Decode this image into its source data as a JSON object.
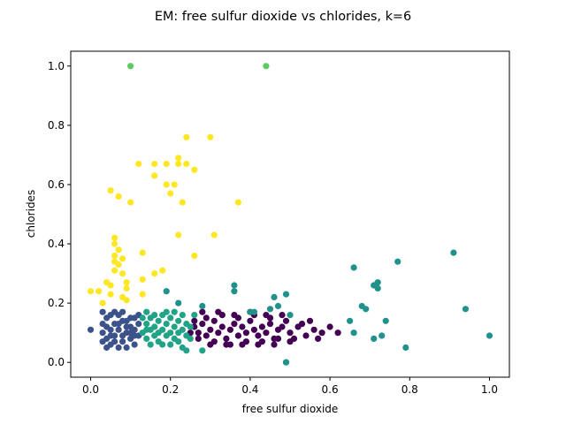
{
  "chart_data": {
    "type": "scatter",
    "title": "EM: free sulfur dioxide vs chlorides, k=6",
    "xlabel": "free sulfur dioxide",
    "ylabel": "chlorides",
    "xlim": [
      -0.05,
      1.05
    ],
    "ylim": [
      -0.05,
      1.05
    ],
    "xticks": [
      "0.0",
      "0.2",
      "0.4",
      "0.6",
      "0.8",
      "1.0"
    ],
    "yticks": [
      "0.0",
      "0.2",
      "0.4",
      "0.6",
      "0.8",
      "1.0"
    ],
    "grid": false,
    "legend": "none",
    "series": [
      {
        "color": "#440154",
        "points": [
          [
            0.26,
            0.12
          ],
          [
            0.27,
            0.1
          ],
          [
            0.28,
            0.13
          ],
          [
            0.29,
            0.09
          ],
          [
            0.3,
            0.11
          ],
          [
            0.31,
            0.14
          ],
          [
            0.32,
            0.1
          ],
          [
            0.33,
            0.12
          ],
          [
            0.34,
            0.08
          ],
          [
            0.35,
            0.11
          ],
          [
            0.36,
            0.13
          ],
          [
            0.37,
            0.09
          ],
          [
            0.38,
            0.12
          ],
          [
            0.39,
            0.1
          ],
          [
            0.4,
            0.14
          ],
          [
            0.41,
            0.11
          ],
          [
            0.42,
            0.09
          ],
          [
            0.43,
            0.12
          ],
          [
            0.44,
            0.1
          ],
          [
            0.45,
            0.13
          ],
          [
            0.46,
            0.08
          ],
          [
            0.47,
            0.11
          ],
          [
            0.48,
            0.12
          ],
          [
            0.5,
            0.1
          ],
          [
            0.52,
            0.12
          ],
          [
            0.54,
            0.09
          ],
          [
            0.56,
            0.11
          ],
          [
            0.58,
            0.1
          ],
          [
            0.6,
            0.12
          ],
          [
            0.27,
            0.08
          ],
          [
            0.29,
            0.15
          ],
          [
            0.31,
            0.07
          ],
          [
            0.33,
            0.16
          ],
          [
            0.35,
            0.06
          ],
          [
            0.37,
            0.15
          ],
          [
            0.39,
            0.07
          ],
          [
            0.41,
            0.16
          ],
          [
            0.43,
            0.07
          ],
          [
            0.45,
            0.15
          ],
          [
            0.47,
            0.08
          ],
          [
            0.49,
            0.14
          ],
          [
            0.51,
            0.08
          ],
          [
            0.53,
            0.13
          ],
          [
            0.55,
            0.14
          ],
          [
            0.57,
            0.08
          ],
          [
            0.28,
            0.17
          ],
          [
            0.32,
            0.17
          ],
          [
            0.36,
            0.16
          ],
          [
            0.4,
            0.17
          ],
          [
            0.44,
            0.16
          ],
          [
            0.48,
            0.16
          ],
          [
            0.3,
            0.06
          ],
          [
            0.34,
            0.06
          ],
          [
            0.38,
            0.06
          ],
          [
            0.42,
            0.06
          ],
          [
            0.46,
            0.06
          ],
          [
            0.5,
            0.07
          ],
          [
            0.25,
            0.1
          ],
          [
            0.26,
            0.14
          ],
          [
            0.62,
            0.1
          ]
        ]
      },
      {
        "color": "#3b528b",
        "points": [
          [
            0.0,
            0.11
          ],
          [
            0.03,
            0.1
          ],
          [
            0.03,
            0.13
          ],
          [
            0.04,
            0.08
          ],
          [
            0.04,
            0.15
          ],
          [
            0.05,
            0.11
          ],
          [
            0.05,
            0.06
          ],
          [
            0.06,
            0.13
          ],
          [
            0.06,
            0.09
          ],
          [
            0.07,
            0.16
          ],
          [
            0.07,
            0.11
          ],
          [
            0.08,
            0.07
          ],
          [
            0.08,
            0.14
          ],
          [
            0.09,
            0.1
          ],
          [
            0.09,
            0.12
          ],
          [
            0.1,
            0.08
          ],
          [
            0.1,
            0.15
          ],
          [
            0.11,
            0.11
          ],
          [
            0.11,
            0.06
          ],
          [
            0.12,
            0.13
          ],
          [
            0.03,
            0.07
          ],
          [
            0.04,
            0.12
          ],
          [
            0.05,
            0.16
          ],
          [
            0.06,
            0.07
          ],
          [
            0.07,
            0.05
          ],
          [
            0.08,
            0.17
          ],
          [
            0.09,
            0.05
          ],
          [
            0.1,
            0.12
          ],
          [
            0.11,
            0.15
          ],
          [
            0.12,
            0.09
          ],
          [
            0.03,
            0.17
          ],
          [
            0.04,
            0.05
          ],
          [
            0.06,
            0.17
          ],
          [
            0.08,
            0.09
          ],
          [
            0.1,
            0.1
          ],
          [
            0.12,
            0.16
          ],
          [
            0.05,
            0.09
          ],
          [
            0.07,
            0.13
          ],
          [
            0.09,
            0.14
          ],
          [
            0.11,
            0.09
          ]
        ]
      },
      {
        "color": "#21918c",
        "points": [
          [
            0.49,
            0.0
          ],
          [
            0.49,
            0.0
          ],
          [
            0.66,
            0.32
          ],
          [
            0.77,
            0.34
          ],
          [
            0.91,
            0.37
          ],
          [
            0.94,
            0.18
          ],
          [
            1.0,
            0.09
          ],
          [
            0.71,
            0.26
          ],
          [
            0.72,
            0.27
          ],
          [
            0.72,
            0.25
          ],
          [
            0.68,
            0.19
          ],
          [
            0.69,
            0.18
          ],
          [
            0.74,
            0.14
          ],
          [
            0.65,
            0.14
          ],
          [
            0.66,
            0.1
          ],
          [
            0.71,
            0.08
          ],
          [
            0.73,
            0.09
          ],
          [
            0.79,
            0.05
          ],
          [
            0.36,
            0.26
          ],
          [
            0.36,
            0.24
          ],
          [
            0.46,
            0.22
          ],
          [
            0.49,
            0.23
          ],
          [
            0.4,
            0.17
          ],
          [
            0.45,
            0.18
          ],
          [
            0.22,
            0.2
          ],
          [
            0.28,
            0.19
          ],
          [
            0.41,
            0.17
          ],
          [
            0.47,
            0.19
          ],
          [
            0.19,
            0.24
          ],
          [
            0.5,
            0.16
          ]
        ]
      },
      {
        "color": "#5ec962",
        "points": [
          [
            0.1,
            1.0
          ],
          [
            0.44,
            1.0
          ]
        ]
      },
      {
        "color": "#fde725",
        "points": [
          [
            0.0,
            0.24
          ],
          [
            0.02,
            0.24
          ],
          [
            0.05,
            0.58
          ],
          [
            0.07,
            0.56
          ],
          [
            0.1,
            0.54
          ],
          [
            0.12,
            0.67
          ],
          [
            0.16,
            0.67
          ],
          [
            0.16,
            0.63
          ],
          [
            0.19,
            0.67
          ],
          [
            0.22,
            0.67
          ],
          [
            0.22,
            0.69
          ],
          [
            0.24,
            0.67
          ],
          [
            0.26,
            0.65
          ],
          [
            0.24,
            0.76
          ],
          [
            0.3,
            0.76
          ],
          [
            0.19,
            0.6
          ],
          [
            0.21,
            0.6
          ],
          [
            0.2,
            0.57
          ],
          [
            0.23,
            0.54
          ],
          [
            0.22,
            0.43
          ],
          [
            0.31,
            0.43
          ],
          [
            0.37,
            0.54
          ],
          [
            0.06,
            0.42
          ],
          [
            0.06,
            0.4
          ],
          [
            0.07,
            0.38
          ],
          [
            0.13,
            0.37
          ],
          [
            0.06,
            0.36
          ],
          [
            0.06,
            0.34
          ],
          [
            0.07,
            0.33
          ],
          [
            0.08,
            0.35
          ],
          [
            0.06,
            0.31
          ],
          [
            0.08,
            0.3
          ],
          [
            0.05,
            0.26
          ],
          [
            0.16,
            0.3
          ],
          [
            0.18,
            0.31
          ],
          [
            0.26,
            0.36
          ],
          [
            0.09,
            0.27
          ],
          [
            0.09,
            0.25
          ],
          [
            0.13,
            0.28
          ],
          [
            0.13,
            0.23
          ],
          [
            0.08,
            0.22
          ],
          [
            0.03,
            0.2
          ],
          [
            0.05,
            0.23
          ],
          [
            0.09,
            0.21
          ],
          [
            0.04,
            0.27
          ]
        ]
      },
      {
        "color": "#20a386",
        "points": [
          [
            0.13,
            0.1
          ],
          [
            0.14,
            0.13
          ],
          [
            0.14,
            0.08
          ],
          [
            0.15,
            0.11
          ],
          [
            0.15,
            0.15
          ],
          [
            0.16,
            0.09
          ],
          [
            0.16,
            0.12
          ],
          [
            0.17,
            0.14
          ],
          [
            0.17,
            0.07
          ],
          [
            0.18,
            0.11
          ],
          [
            0.18,
            0.16
          ],
          [
            0.19,
            0.09
          ],
          [
            0.19,
            0.13
          ],
          [
            0.2,
            0.1
          ],
          [
            0.2,
            0.15
          ],
          [
            0.21,
            0.08
          ],
          [
            0.21,
            0.12
          ],
          [
            0.22,
            0.14
          ],
          [
            0.22,
            0.07
          ],
          [
            0.23,
            0.11
          ],
          [
            0.23,
            0.16
          ],
          [
            0.24,
            0.09
          ],
          [
            0.24,
            0.13
          ],
          [
            0.25,
            0.12
          ],
          [
            0.13,
            0.15
          ],
          [
            0.14,
            0.17
          ],
          [
            0.15,
            0.06
          ],
          [
            0.16,
            0.16
          ],
          [
            0.17,
            0.1
          ],
          [
            0.18,
            0.06
          ],
          [
            0.19,
            0.17
          ],
          [
            0.2,
            0.06
          ],
          [
            0.21,
            0.17
          ],
          [
            0.22,
            0.1
          ],
          [
            0.23,
            0.05
          ],
          [
            0.24,
            0.04
          ],
          [
            0.25,
            0.08
          ],
          [
            0.26,
            0.16
          ],
          [
            0.28,
            0.04
          ],
          [
            0.14,
            0.11
          ]
        ]
      }
    ]
  }
}
